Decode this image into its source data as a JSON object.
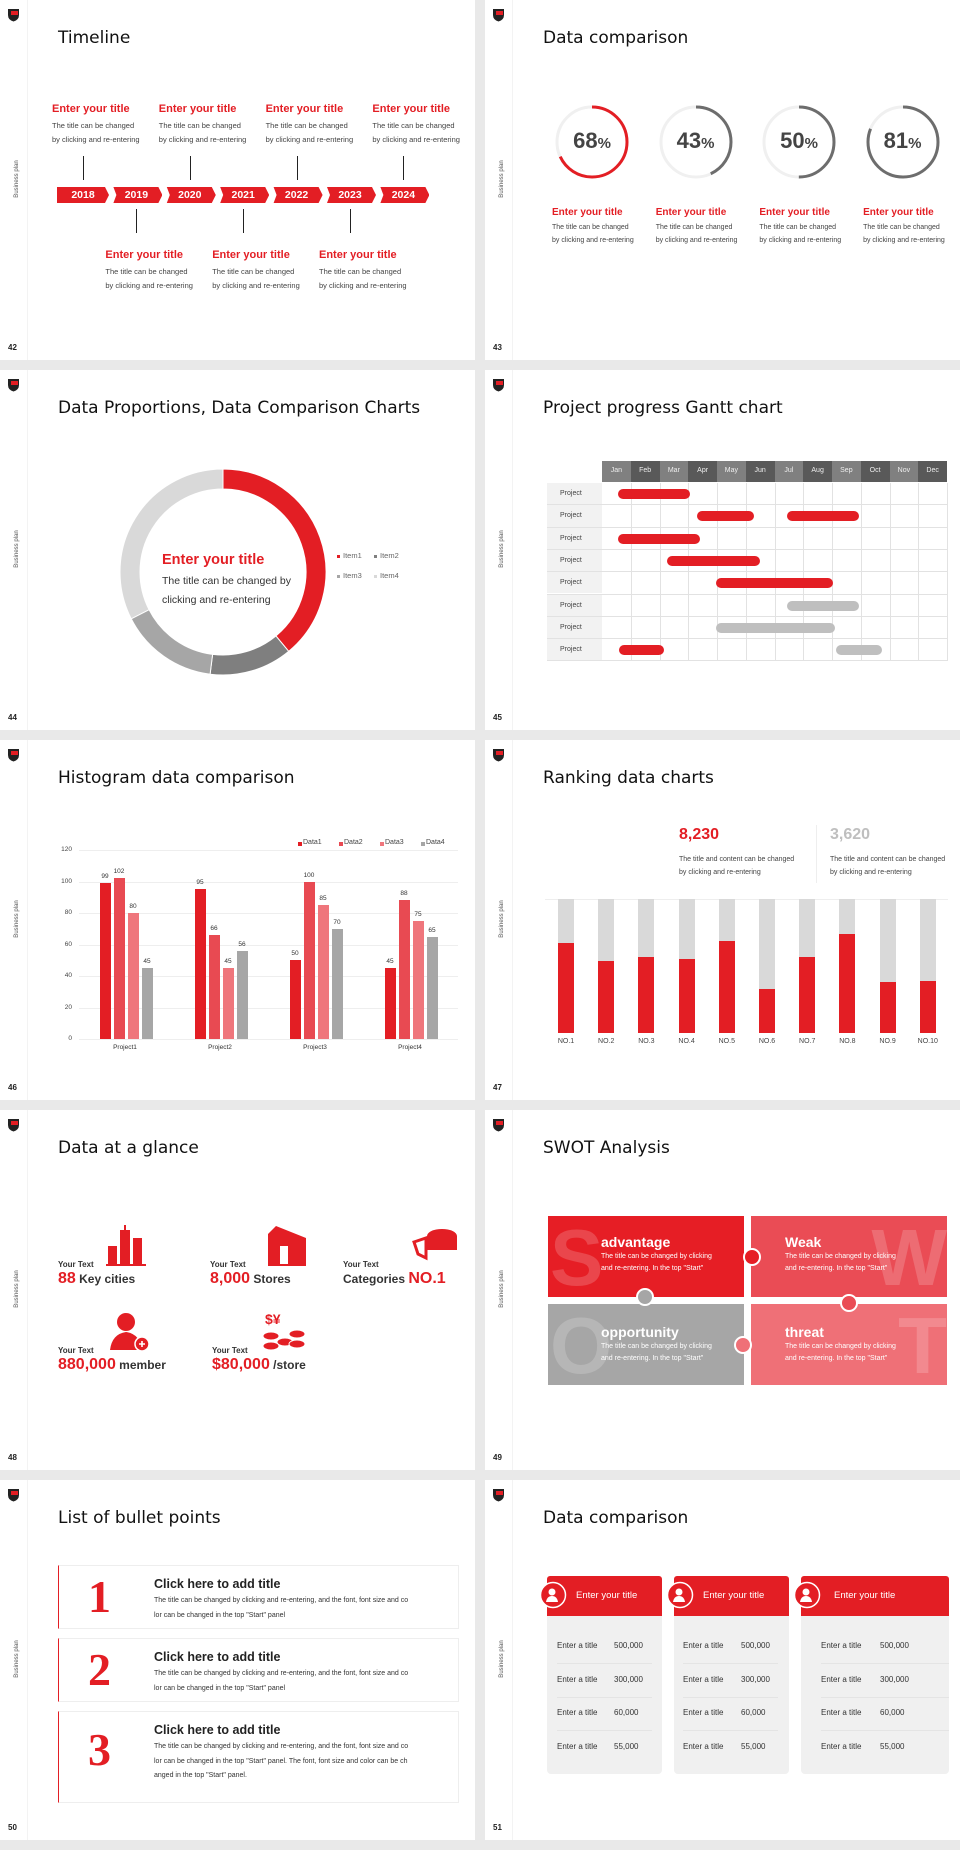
{
  "common": {
    "side_label": "Business plan"
  },
  "colors": {
    "red": "#e31e24",
    "red2": "#e84a52",
    "red3": "#ef767c",
    "gray": "#a6a6a6",
    "dark_gray": "#6d6d6d",
    "light_gray": "#d9d9d9"
  },
  "s42": {
    "page": "42",
    "title": "Timeline",
    "years": [
      "2018",
      "2019",
      "2020",
      "2021",
      "2022",
      "2023",
      "2024"
    ],
    "events": [
      {
        "title": "Enter your title",
        "line1": "The title can be changed",
        "line2": "by clicking and re-entering"
      },
      {
        "title": "Enter your title",
        "line1": "The title can be changed",
        "line2": "by clicking and re-entering"
      },
      {
        "title": "Enter your title",
        "line1": "The title can be changed",
        "line2": "by clicking and re-entering"
      },
      {
        "title": "Enter your title",
        "line1": "The title can be changed",
        "line2": "by clicking and re-entering"
      },
      {
        "title": "Enter your title",
        "line1": "The title can be changed",
        "line2": "by clicking and re-entering"
      },
      {
        "title": "Enter your title",
        "line1": "The title can be changed",
        "line2": "by clicking and re-entering"
      },
      {
        "title": "Enter your title",
        "line1": "The title can be changed",
        "line2": "by clicking and re-entering"
      }
    ]
  },
  "s43": {
    "page": "43",
    "title": "Data comparison",
    "items": [
      {
        "value": "68",
        "unit": "%",
        "percent": 68,
        "accent": "red",
        "title": "Enter your title",
        "line1": "The title can be changed",
        "line2": "by clicking and re-entering"
      },
      {
        "value": "43",
        "unit": "%",
        "percent": 43,
        "accent": "gray",
        "title": "Enter your title",
        "line1": "The title can be changed",
        "line2": "by clicking and re-entering"
      },
      {
        "value": "50",
        "unit": "%",
        "percent": 50,
        "accent": "gray",
        "title": "Enter your title",
        "line1": "The title can be changed",
        "line2": "by clicking and re-entering"
      },
      {
        "value": "81",
        "unit": "%",
        "percent": 81,
        "accent": "gray",
        "title": "Enter your title",
        "line1": "The title can be changed",
        "line2": "by clicking and re-entering"
      }
    ]
  },
  "s44": {
    "page": "44",
    "title": "Data Proportions, Data Comparison Charts",
    "center_title": "Enter your title",
    "center_line1": "The title can be changed by",
    "center_line2": "clicking and re-entering"
  },
  "s45": {
    "page": "45",
    "title": "Project progress Gantt chart"
  },
  "s46": {
    "page": "46",
    "title": "Histogram data comparison"
  },
  "s47": {
    "page": "47",
    "title": "Ranking data charts",
    "stats": [
      {
        "value": "8,230",
        "line1": "The title and content can be changed",
        "line2": "by clicking and re-entering"
      },
      {
        "value": "3,620",
        "line1": "The title and content can be changed",
        "line2": "by clicking and re-entering"
      }
    ]
  },
  "s48": {
    "page": "48",
    "title": "Data at a glance",
    "items": [
      {
        "label": "Your Text",
        "value": "88",
        "suffix": " Key cities",
        "icon": "city-buildings-icon"
      },
      {
        "label": "Your Text",
        "value": "8,000",
        "suffix": " Stores",
        "icon": "store-icon"
      },
      {
        "label": "Your Text",
        "prefix": "Categories ",
        "value": "NO.1",
        "icon": "pie-chart-icon"
      },
      {
        "label": "Your Text",
        "value": "880,000",
        "suffix": " member",
        "icon": "add-member-icon"
      },
      {
        "label": "Your Text",
        "value": "$80,000",
        "suffix": " /store",
        "icon": "money-coins-icon"
      }
    ]
  },
  "s49": {
    "page": "49",
    "title": "SWOT Analysis",
    "tiles": [
      {
        "letter": "S",
        "title": "advantage",
        "line1": "The title can be changed by clicking",
        "line2": "and re-entering. In the top \"Start\"",
        "color": "#e61e25"
      },
      {
        "letter": "W",
        "title": "Weak",
        "line1": "The title can be changed by clicking",
        "line2": "and re-entering. In the top \"Start\"",
        "color": "#ea4c55"
      },
      {
        "letter": "O",
        "title": "opportunity",
        "line1": "The title can be changed by clicking",
        "line2": "and re-entering. In the top \"Start\"",
        "color": "#a6a6a6"
      },
      {
        "letter": "T",
        "title": "threat",
        "line1": "The title can be changed by clicking",
        "line2": "and re-entering. In the top \"Start\"",
        "color": "#ef7077"
      }
    ]
  },
  "s50": {
    "page": "50",
    "title": "List of bullet points",
    "items": [
      {
        "num": "1",
        "title": "Click here to add title",
        "lines": [
          "The title can be changed by clicking and re-entering, and the font, font size and co",
          "lor can be changed in the top \"Start\" panel"
        ]
      },
      {
        "num": "2",
        "title": "Click here to add title",
        "lines": [
          "The title can be changed by clicking and re-entering, and the font, font size and co",
          "lor can be changed in the top \"Start\" panel"
        ]
      },
      {
        "num": "3",
        "title": "Click here to add title",
        "lines": [
          "The title can be changed by clicking and re-entering, and the font, font size and co",
          "lor can be changed in the top \"Start\" panel. The font, font size and color can be ch",
          "anged in the top \"Start\" panel."
        ]
      }
    ]
  },
  "s51": {
    "page": "51",
    "title": "Data comparison",
    "cards": [
      {
        "header": "Enter your title",
        "icon": "id-card-add-icon",
        "rows": [
          [
            "Enter a title",
            "500,000"
          ],
          [
            "Enter a title",
            "300,000"
          ],
          [
            "Enter a title",
            "60,000"
          ],
          [
            "Enter a title",
            "55,000"
          ]
        ]
      },
      {
        "header": "Enter your title",
        "icon": "user-add-icon",
        "rows": [
          [
            "Enter a title",
            "500,000"
          ],
          [
            "Enter a title",
            "300,000"
          ],
          [
            "Enter a title",
            "60,000"
          ],
          [
            "Enter a title",
            "55,000"
          ]
        ]
      },
      {
        "header": "Enter your title",
        "icon": "user-group-icon",
        "rows": [
          [
            "Enter a title",
            "500,000"
          ],
          [
            "Enter a title",
            "300,000"
          ],
          [
            "Enter a title",
            "60,000"
          ],
          [
            "Enter a title",
            "55,000"
          ]
        ]
      }
    ]
  },
  "chart_data": [
    {
      "type": "pie",
      "variant": "donut",
      "categories": [
        "Item1",
        "Item2",
        "Item3",
        "Item4"
      ],
      "values": [
        39,
        13,
        15.5,
        32.5
      ],
      "colors": [
        "#e31e24",
        "#7f7f7f",
        "#a6a6a6",
        "#d9d9d9"
      ],
      "legend": "right"
    },
    {
      "type": "bar",
      "variant": "gantt",
      "categories": [
        "Jan",
        "Feb",
        "Mar",
        "Apr",
        "May",
        "Jun",
        "Jul",
        "Aug",
        "Sep",
        "Oct",
        "Nov",
        "Dec"
      ],
      "rows": [
        {
          "label": "Project",
          "bars": [
            {
              "start": 0.55,
              "end": 3.05,
              "color": "red"
            }
          ]
        },
        {
          "label": "Project",
          "bars": [
            {
              "start": 3.3,
              "end": 5.3,
              "color": "red"
            },
            {
              "start": 6.45,
              "end": 8.95,
              "color": "red"
            }
          ]
        },
        {
          "label": "Project",
          "bars": [
            {
              "start": 0.55,
              "end": 3.4,
              "color": "red"
            }
          ]
        },
        {
          "label": "Project",
          "bars": [
            {
              "start": 2.25,
              "end": 5.5,
              "color": "red"
            }
          ]
        },
        {
          "label": "Project",
          "bars": [
            {
              "start": 3.95,
              "end": 8.05,
              "color": "red"
            }
          ]
        },
        {
          "label": "Project",
          "bars": [
            {
              "start": 6.45,
              "end": 8.95,
              "color": "gray"
            }
          ]
        },
        {
          "label": "Project",
          "bars": [
            {
              "start": 3.95,
              "end": 8.1,
              "color": "gray"
            }
          ]
        },
        {
          "label": "Project",
          "bars": [
            {
              "start": 0.6,
              "end": 2.15,
              "color": "red"
            },
            {
              "start": 8.15,
              "end": 9.75,
              "color": "gray"
            }
          ]
        }
      ]
    },
    {
      "type": "bar",
      "categories": [
        "Project1",
        "Project2",
        "Project3",
        "Project4"
      ],
      "series": [
        {
          "name": "Data1",
          "values": [
            99,
            95,
            50,
            45
          ],
          "color": "#e31e24"
        },
        {
          "name": "Data2",
          "values": [
            102,
            66,
            100,
            88
          ],
          "color": "#e84a52"
        },
        {
          "name": "Data3",
          "values": [
            80,
            45,
            85,
            75
          ],
          "color": "#ef767c"
        },
        {
          "name": "Data4",
          "values": [
            45,
            56,
            70,
            65
          ],
          "color": "#a6a6a6"
        }
      ],
      "ylim": [
        0,
        120
      ],
      "yticks": [
        "0",
        "20",
        "40",
        "60",
        "80",
        "100",
        "120"
      ],
      "grid": true,
      "legend": "top-right"
    },
    {
      "type": "bar",
      "variant": "stacked-percent",
      "categories": [
        "NO.1",
        "NO.2",
        "NO.3",
        "NO.4",
        "NO.5",
        "NO.6",
        "NO.7",
        "NO.8",
        "NO.9",
        "NO.10"
      ],
      "values": [
        67,
        54,
        57,
        55,
        69,
        33,
        57,
        74,
        38,
        39
      ],
      "ylim": [
        0,
        100
      ]
    }
  ]
}
